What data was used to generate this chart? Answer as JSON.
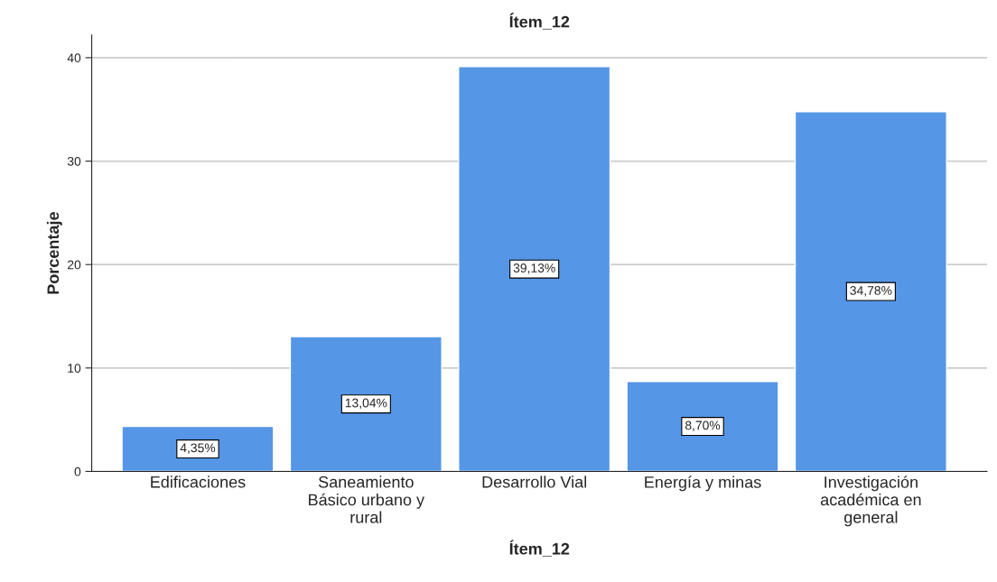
{
  "chart_data": {
    "type": "bar",
    "title": "Ítem_12",
    "xlabel": "Ítem_12",
    "ylabel": "Porcentaje",
    "categories": [
      "Edificaciones",
      "Saneamiento Básico urbano y rural",
      "Desarrollo Vial",
      "Energía y minas",
      "Investigación académica en general"
    ],
    "values": [
      4.35,
      13.04,
      39.13,
      8.7,
      34.78
    ],
    "value_labels": [
      "4,35%",
      "13,04%",
      "39,13%",
      "8,70%",
      "34,78%"
    ],
    "color": "#5596e6",
    "ylim": [
      0,
      42.2
    ],
    "yticks": [
      0,
      10,
      20,
      30,
      40
    ],
    "grid": "y",
    "legend": false
  }
}
